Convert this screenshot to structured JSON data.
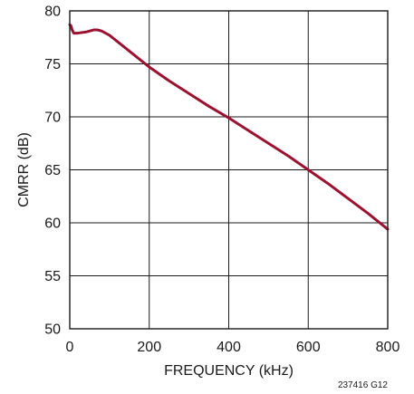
{
  "chart_data": {
    "type": "line",
    "title": "",
    "xlabel": "FREQUENCY (kHz)",
    "ylabel": "CMRR (dB)",
    "xlim": [
      0,
      800
    ],
    "ylim": [
      50,
      80
    ],
    "xticks": [
      0,
      200,
      400,
      600,
      800
    ],
    "yticks": [
      50,
      55,
      60,
      65,
      70,
      75,
      80
    ],
    "grid": true,
    "legend": "none",
    "series": [
      {
        "color": "#9b1230",
        "x": [
          0,
          3,
          6,
          10,
          20,
          40,
          60,
          70,
          80,
          100,
          120,
          150,
          200,
          250,
          300,
          350,
          400,
          450,
          500,
          550,
          600,
          650,
          700,
          750,
          800
        ],
        "y": [
          78.7,
          78.6,
          78.2,
          77.9,
          77.9,
          78.0,
          78.2,
          78.2,
          78.1,
          77.7,
          77.1,
          76.2,
          74.7,
          73.4,
          72.2,
          71.0,
          69.9,
          68.7,
          67.5,
          66.3,
          65.0,
          63.7,
          62.3,
          60.9,
          59.4
        ]
      }
    ]
  },
  "footnote": "237416 G12"
}
